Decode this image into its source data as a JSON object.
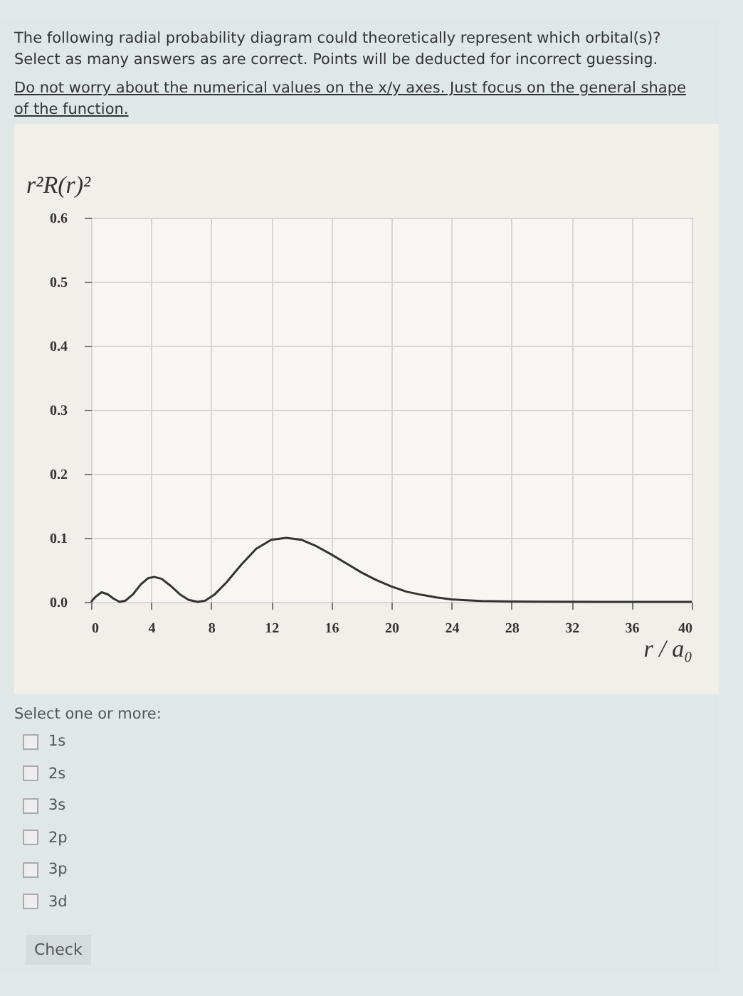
{
  "chart_data": {
    "type": "line",
    "title": "The following radial probability diagram could theoretically represent which orbital(s)? Select as many answers as are correct. Points will be deducted for incorrect guessing.",
    "subtitle": "Do not worry about the numerical values on the x/y axes. Just focus on the general shape of the function.",
    "xlabel": "r / a₀",
    "ylabel": "r²R(r)²",
    "x": [
      0,
      0.3,
      0.7,
      1.1,
      1.5,
      1.9,
      2.3,
      2.8,
      3.3,
      3.8,
      4.2,
      4.7,
      5.3,
      5.9,
      6.5,
      7.1,
      7.6,
      8.2,
      9,
      10,
      11,
      12,
      13,
      14,
      15,
      16,
      17,
      18,
      19,
      20,
      21,
      22,
      23,
      24,
      25,
      26,
      28,
      30,
      34,
      40
    ],
    "series": [
      {
        "color": "#333333",
        "values": [
          0,
          0.008,
          0.015,
          0.012,
          0.005,
          0,
          0.002,
          0.012,
          0.027,
          0.037,
          0.039,
          0.036,
          0.025,
          0.012,
          0.003,
          0,
          0.002,
          0.011,
          0.03,
          0.058,
          0.083,
          0.097,
          0.1,
          0.097,
          0.087,
          0.074,
          0.06,
          0.046,
          0.034,
          0.024,
          0.016,
          0.011,
          0.007,
          0.004,
          0.0025,
          0.0015,
          0.0006,
          0.0002,
          0,
          0
        ]
      }
    ],
    "xlim": [
      0,
      40
    ],
    "xticks": [
      0,
      4,
      8,
      12,
      16,
      20,
      24,
      28,
      32,
      36,
      40
    ],
    "ylim": [
      0,
      0.6
    ],
    "yticks": [
      {
        "value": 0,
        "label": "0.0"
      },
      0.1,
      0.2,
      0.3,
      0.4,
      0.5,
      0.6
    ],
    "grid": true,
    "legend": false,
    "marker": "none",
    "line_style": "solid",
    "annotations": [
      "Select one or more:",
      "1s",
      "2s",
      "3s",
      "2p",
      "3p",
      "3d",
      "Check"
    ]
  }
}
